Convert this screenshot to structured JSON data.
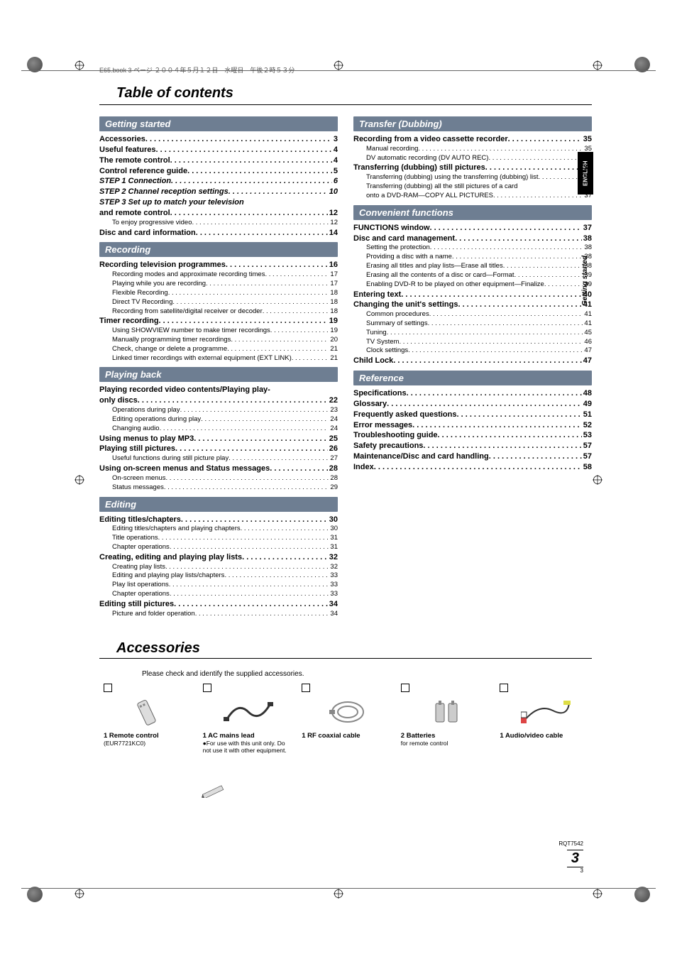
{
  "header_line": "E65.book  3 ページ  ２００４年５月１２日　水曜日　午後２時５３分",
  "title": "Table of contents",
  "accessories_title": "Accessories",
  "accessories_intro": "Please check and identify the supplied accessories.",
  "side_tab": "ENGLISH",
  "side_label": "Getting started",
  "footer_code": "RQT7542",
  "footer_page_big": "3",
  "footer_page_small": "3",
  "col_left": [
    {
      "type": "head",
      "text": "Getting started"
    },
    {
      "lvl": 0,
      "label": "Accessories",
      "page": "3"
    },
    {
      "lvl": 0,
      "label": "Useful features",
      "page": "4"
    },
    {
      "lvl": 0,
      "label": "The remote control",
      "page": "4"
    },
    {
      "lvl": 0,
      "label": "Control reference guide",
      "page": "5"
    },
    {
      "lvl": 0,
      "italic": true,
      "label": "STEP 1  Connection",
      "page": "6"
    },
    {
      "lvl": 0,
      "italic": true,
      "label": "STEP 2  Channel reception settings",
      "page": "10"
    },
    {
      "lvl": 0,
      "italic": true,
      "nopage": true,
      "label": "STEP 3  Set up to match your television"
    },
    {
      "lvl": 0,
      "label": "  and remote control",
      "page": "12"
    },
    {
      "lvl": 1,
      "label": "To enjoy progressive video",
      "page": "12"
    },
    {
      "lvl": 0,
      "label": "Disc and card information",
      "page": "14"
    },
    {
      "type": "head",
      "text": "Recording"
    },
    {
      "lvl": 0,
      "label": "Recording television programmes",
      "page": "16"
    },
    {
      "lvl": 1,
      "label": "Recording modes and approximate recording times",
      "page": "17"
    },
    {
      "lvl": 1,
      "label": "Playing while you are recording",
      "page": "17"
    },
    {
      "lvl": 1,
      "label": "Flexible Recording",
      "page": "18"
    },
    {
      "lvl": 1,
      "label": "Direct TV Recording",
      "page": "18"
    },
    {
      "lvl": 1,
      "label": "Recording from satellite/digital receiver or decoder",
      "page": "18"
    },
    {
      "lvl": 0,
      "label": "Timer recording",
      "page": "19"
    },
    {
      "lvl": 1,
      "label": "Using SHOWVIEW number to make timer recordings",
      "page": "19"
    },
    {
      "lvl": 1,
      "label": "Manually programming timer recordings",
      "page": "20"
    },
    {
      "lvl": 1,
      "label": "Check, change or delete a programme",
      "page": "21"
    },
    {
      "lvl": 1,
      "label": "Linked timer recordings with external equipment (EXT LINK)",
      "page": "21"
    },
    {
      "type": "head",
      "text": "Playing back"
    },
    {
      "lvl": 0,
      "nopage": true,
      "label": "Playing recorded video contents/Playing play-"
    },
    {
      "lvl": 0,
      "label": "only discs",
      "page": "22"
    },
    {
      "lvl": 1,
      "label": "Operations during play",
      "page": "23"
    },
    {
      "lvl": 1,
      "label": "Editing operations during play",
      "page": "24"
    },
    {
      "lvl": 1,
      "label": "Changing audio",
      "page": "24"
    },
    {
      "lvl": 0,
      "label": "Using menus to play MP3",
      "page": "25"
    },
    {
      "lvl": 0,
      "label": "Playing still pictures",
      "page": "26"
    },
    {
      "lvl": 1,
      "label": "Useful functions during still picture play",
      "page": "27"
    },
    {
      "lvl": 0,
      "label": "Using on-screen menus and Status messages",
      "page": "28"
    },
    {
      "lvl": 1,
      "label": "On-screen menus",
      "page": "28"
    },
    {
      "lvl": 1,
      "label": "Status messages",
      "page": "29"
    },
    {
      "type": "head",
      "text": "Editing"
    },
    {
      "lvl": 0,
      "label": "Editing titles/chapters",
      "page": "30"
    },
    {
      "lvl": 1,
      "label": "Editing titles/chapters and playing chapters",
      "page": "30"
    },
    {
      "lvl": 1,
      "label": "Title operations",
      "page": "31"
    },
    {
      "lvl": 1,
      "label": "Chapter operations",
      "page": "31"
    },
    {
      "lvl": 0,
      "label": "Creating, editing and playing play lists",
      "page": "32"
    },
    {
      "lvl": 1,
      "label": "Creating play lists",
      "page": "32"
    },
    {
      "lvl": 1,
      "label": "Editing and playing play lists/chapters",
      "page": "33"
    },
    {
      "lvl": 1,
      "label": "Play list operations",
      "page": "33"
    },
    {
      "lvl": 1,
      "label": "Chapter operations",
      "page": "33"
    },
    {
      "lvl": 0,
      "label": "Editing still pictures",
      "page": "34"
    },
    {
      "lvl": 1,
      "label": "Picture and folder operation",
      "page": "34"
    }
  ],
  "col_right": [
    {
      "type": "head",
      "text": "Transfer (Dubbing)"
    },
    {
      "lvl": 0,
      "label": "Recording from a video cassette recorder",
      "page": "35"
    },
    {
      "lvl": 1,
      "label": "Manual recording",
      "page": "35"
    },
    {
      "lvl": 1,
      "label": "DV automatic recording (DV AUTO REC)",
      "page": "35"
    },
    {
      "lvl": 0,
      "label": "Transferring (dubbing) still pictures",
      "page": "36"
    },
    {
      "lvl": 1,
      "label": "Transferring (dubbing) using the transferring (dubbing) list",
      "page": "36"
    },
    {
      "lvl": 1,
      "nopage": true,
      "label": "Transferring (dubbing) all the still pictures of a card"
    },
    {
      "lvl": 1,
      "label": "  onto a DVD-RAM—COPY ALL PICTURES",
      "page": "37"
    },
    {
      "type": "head",
      "text": "Convenient functions"
    },
    {
      "lvl": 0,
      "label": "FUNCTIONS window",
      "page": "37"
    },
    {
      "lvl": 0,
      "label": "Disc and card management",
      "page": "38"
    },
    {
      "lvl": 1,
      "label": "Setting the protection",
      "page": "38"
    },
    {
      "lvl": 1,
      "label": "Providing a disc with a name",
      "page": "38"
    },
    {
      "lvl": 1,
      "label": "Erasing all titles and play lists—Erase all titles",
      "page": "38"
    },
    {
      "lvl": 1,
      "label": "Erasing all the contents of a disc or card—Format",
      "page": "39"
    },
    {
      "lvl": 1,
      "label": "Enabling DVD-R to be played on other equipment—Finalize",
      "page": "39"
    },
    {
      "lvl": 0,
      "label": "Entering text",
      "page": "40"
    },
    {
      "lvl": 0,
      "label": "Changing the unit's settings",
      "page": "41"
    },
    {
      "lvl": 1,
      "label": "Common procedures",
      "page": "41"
    },
    {
      "lvl": 1,
      "label": "Summary of settings",
      "page": "41"
    },
    {
      "lvl": 1,
      "label": "Tuning",
      "page": "45"
    },
    {
      "lvl": 1,
      "label": "TV System",
      "page": "46"
    },
    {
      "lvl": 1,
      "label": "Clock settings",
      "page": "47"
    },
    {
      "lvl": 0,
      "label": "Child Lock",
      "page": "47"
    },
    {
      "type": "head",
      "text": "Reference"
    },
    {
      "lvl": 0,
      "label": "Specifications",
      "page": "48"
    },
    {
      "lvl": 0,
      "label": "Glossary",
      "page": "49"
    },
    {
      "lvl": 0,
      "label": "Frequently asked questions",
      "page": "51"
    },
    {
      "lvl": 0,
      "label": "Error messages",
      "page": "52"
    },
    {
      "lvl": 0,
      "label": "Troubleshooting guide",
      "page": "53"
    },
    {
      "lvl": 0,
      "label": "Safety precautions",
      "page": "57"
    },
    {
      "lvl": 0,
      "label": "Maintenance/Disc and card handling",
      "page": "57"
    },
    {
      "lvl": 0,
      "label": "Index",
      "page": "58"
    }
  ],
  "accessories": [
    {
      "qty": "1",
      "name": "Remote control",
      "sub": "(EUR7721KC0)"
    },
    {
      "qty": "1",
      "name": "AC mains lead",
      "sub": "●For use with this unit only. Do not use it with other equipment."
    },
    {
      "qty": "1",
      "name": "RF coaxial cable",
      "sub": ""
    },
    {
      "qty": "2",
      "name": "Batteries",
      "sub": "for remote control"
    },
    {
      "qty": "1",
      "name": "Audio/video cable",
      "sub": ""
    }
  ]
}
